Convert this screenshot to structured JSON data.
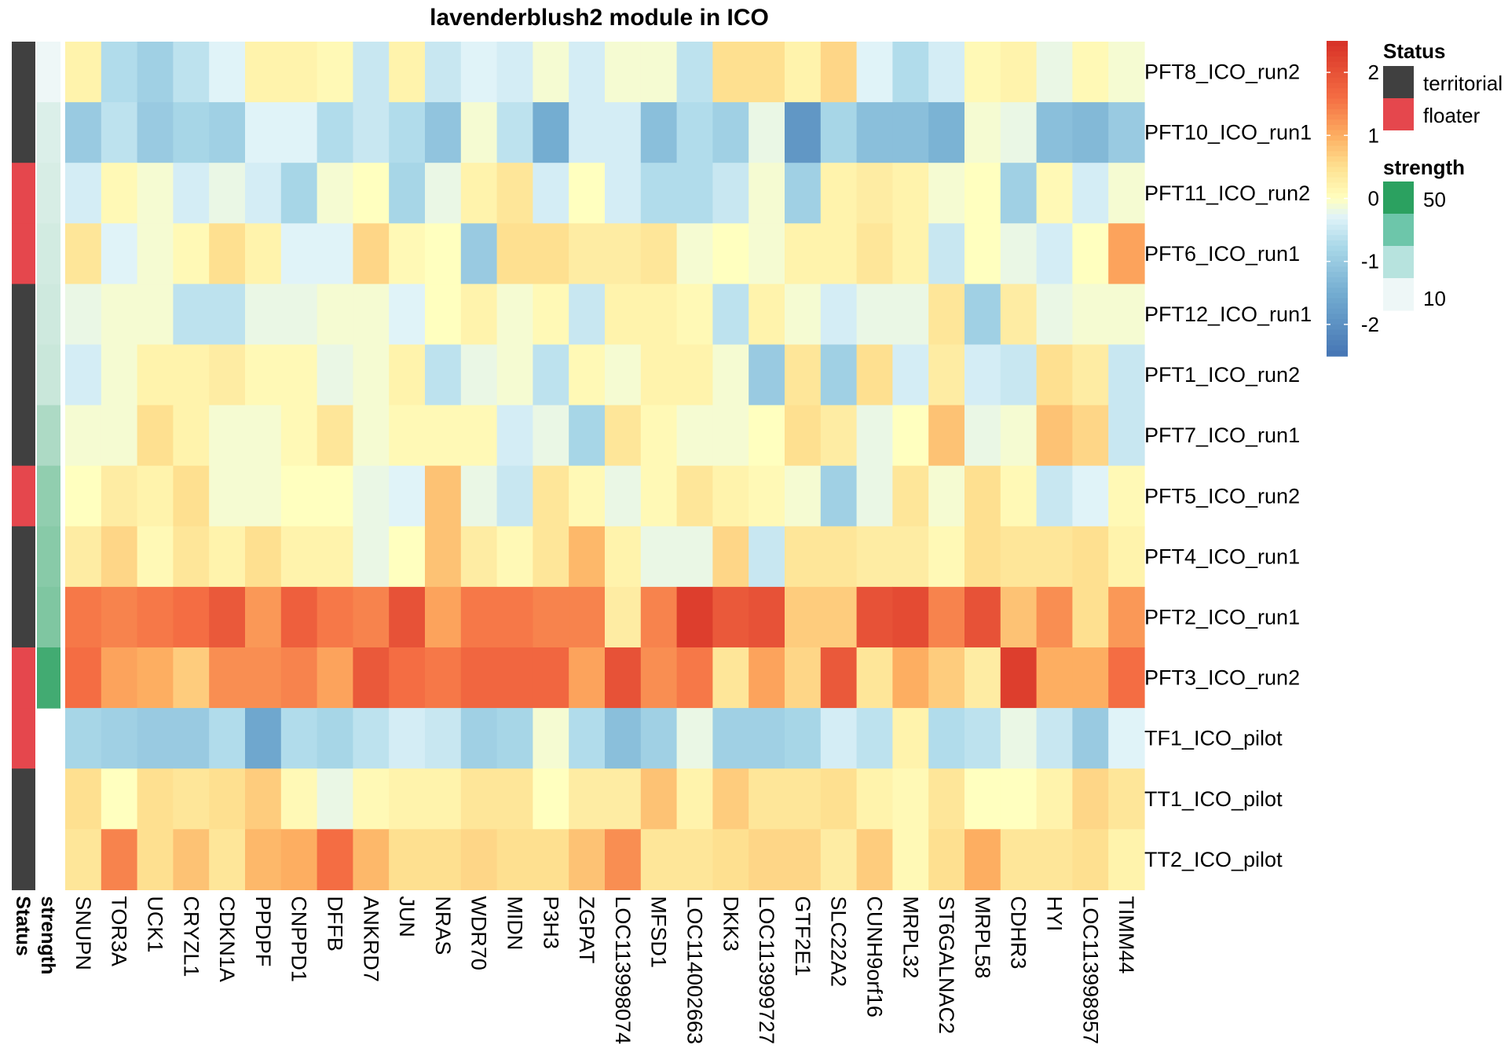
{
  "chart_data": {
    "type": "heatmap",
    "title": "lavenderblush2 module in ICO",
    "rows": [
      "PFT8_ICO_run2",
      "PFT10_ICO_run1",
      "PFT11_ICO_run2",
      "PFT6_ICO_run1",
      "PFT12_ICO_run1",
      "PFT1_ICO_run2",
      "PFT7_ICO_run1",
      "PFT5_ICO_run2",
      "PFT4_ICO_run1",
      "PFT2_ICO_run1",
      "PFT3_ICO_run2",
      "TF1_ICO_pilot",
      "TT1_ICO_pilot",
      "TT2_ICO_pilot"
    ],
    "columns": [
      "SNUPN",
      "TOR3A",
      "UCK1",
      "CRYZL1",
      "CDKN1A",
      "PPDPF",
      "CNPPD1",
      "DFFB",
      "ANKRD7",
      "JUN",
      "NRAS",
      "WDR70",
      "MIDN",
      "P3H3",
      "ZGPAT",
      "LOC113998074",
      "MFSD1",
      "LOC114002663",
      "DKK3",
      "LOC113999727",
      "GTF2E1",
      "SLC22A2",
      "CUNH9orf16",
      "MRPL32",
      "ST6GALNAC2",
      "MRPL58",
      "CDHR3",
      "HYI",
      "LOC113998957",
      "TIMM44"
    ],
    "values": [
      [
        0.2,
        -0.7,
        -0.9,
        -0.6,
        -0.3,
        0.2,
        0.2,
        0.1,
        -0.5,
        0.2,
        -0.5,
        -0.3,
        -0.4,
        -0.1,
        -0.4,
        -0.1,
        -0.1,
        -0.6,
        0.5,
        0.5,
        0.2,
        0.6,
        -0.3,
        -0.7,
        -0.4,
        0.1,
        0.2,
        -0.2,
        0.1,
        -0.1
      ],
      [
        -1.0,
        -0.6,
        -1.0,
        -0.8,
        -0.9,
        -0.3,
        -0.3,
        -0.7,
        -0.5,
        -0.7,
        -1.1,
        -0.1,
        -0.6,
        -1.5,
        -0.4,
        -0.4,
        -1.2,
        -0.7,
        -0.9,
        -0.2,
        -1.9,
        -0.8,
        -1.2,
        -1.2,
        -1.4,
        -0.1,
        -0.2,
        -1.2,
        -1.3,
        -1.0
      ],
      [
        -0.4,
        0.1,
        -0.1,
        -0.4,
        -0.2,
        -0.4,
        -0.8,
        -0.1,
        0.0,
        -0.8,
        -0.2,
        0.2,
        0.4,
        -0.4,
        0.0,
        -0.4,
        -0.7,
        -0.7,
        -0.5,
        -0.1,
        -0.9,
        0.2,
        0.3,
        0.2,
        -0.1,
        0.0,
        -0.9,
        0.1,
        -0.4,
        -0.1
      ],
      [
        0.4,
        -0.3,
        -0.1,
        0.1,
        0.5,
        0.2,
        -0.3,
        -0.3,
        0.6,
        0.1,
        0.0,
        -1.0,
        0.5,
        0.5,
        0.3,
        0.3,
        0.4,
        -0.1,
        0.0,
        -0.1,
        0.2,
        0.2,
        0.4,
        0.2,
        -0.5,
        0.0,
        -0.2,
        -0.4,
        0.0,
        1.1
      ],
      [
        -0.2,
        -0.1,
        -0.1,
        -0.6,
        -0.6,
        -0.2,
        -0.2,
        -0.1,
        -0.1,
        -0.3,
        0.0,
        0.2,
        -0.1,
        0.1,
        -0.5,
        0.2,
        0.2,
        0.1,
        -0.6,
        0.2,
        -0.1,
        -0.4,
        -0.2,
        -0.2,
        0.4,
        -0.9,
        0.3,
        -0.2,
        -0.1,
        -0.1
      ],
      [
        -0.4,
        -0.1,
        0.2,
        0.2,
        0.3,
        0.1,
        0.1,
        -0.2,
        -0.1,
        0.2,
        -0.6,
        -0.2,
        -0.1,
        -0.6,
        0.1,
        -0.1,
        0.2,
        0.2,
        -0.1,
        -1.0,
        0.4,
        -0.9,
        0.5,
        -0.4,
        0.3,
        -0.4,
        -0.5,
        0.5,
        0.3,
        -0.5
      ],
      [
        -0.1,
        -0.1,
        0.5,
        0.2,
        -0.1,
        -0.1,
        0.1,
        0.4,
        -0.1,
        0.1,
        0.1,
        0.1,
        -0.4,
        -0.2,
        -0.8,
        0.4,
        0.1,
        -0.1,
        -0.1,
        0.0,
        0.5,
        0.3,
        -0.2,
        0.0,
        0.8,
        -0.2,
        -0.1,
        0.8,
        0.6,
        -0.5
      ],
      [
        0.0,
        0.3,
        0.2,
        0.5,
        -0.1,
        -0.1,
        0.0,
        0.0,
        -0.2,
        -0.3,
        0.8,
        -0.2,
        -0.5,
        0.4,
        0.1,
        -0.2,
        0.1,
        0.4,
        0.2,
        0.1,
        -0.1,
        -0.9,
        -0.2,
        0.4,
        -0.1,
        0.5,
        0.1,
        -0.5,
        -0.3,
        0.1
      ],
      [
        0.3,
        0.6,
        0.1,
        0.4,
        0.2,
        0.5,
        0.2,
        0.2,
        -0.2,
        0.0,
        0.8,
        0.3,
        0.1,
        0.4,
        0.9,
        0.2,
        -0.2,
        -0.2,
        0.6,
        -0.5,
        0.4,
        0.4,
        0.3,
        0.3,
        0.1,
        0.5,
        0.4,
        0.4,
        0.5,
        0.2
      ],
      [
        1.5,
        1.4,
        1.5,
        1.6,
        1.9,
        1.2,
        1.8,
        1.5,
        1.4,
        2.0,
        1.1,
        1.5,
        1.5,
        1.4,
        1.4,
        0.3,
        1.4,
        2.3,
        1.9,
        2.0,
        0.7,
        0.7,
        2.0,
        2.1,
        1.4,
        2.0,
        0.8,
        1.3,
        0.5,
        1.2
      ],
      [
        1.6,
        1.1,
        1.0,
        0.7,
        1.3,
        1.3,
        1.4,
        1.1,
        1.9,
        1.6,
        1.5,
        1.7,
        1.7,
        1.7,
        1.1,
        2.0,
        1.3,
        1.5,
        0.4,
        1.1,
        0.6,
        1.9,
        0.4,
        1.0,
        0.7,
        0.3,
        2.3,
        1.0,
        1.0,
        1.6
      ],
      [
        -0.8,
        -0.9,
        -1.0,
        -1.0,
        -0.7,
        -1.6,
        -0.7,
        -0.8,
        -0.6,
        -0.4,
        -0.5,
        -0.9,
        -0.8,
        -0.1,
        -0.7,
        -1.2,
        -0.9,
        -0.2,
        -0.9,
        -0.9,
        -0.8,
        -0.4,
        -0.6,
        0.2,
        -0.7,
        -0.6,
        -0.2,
        -0.5,
        -1.0,
        -0.3
      ],
      [
        0.5,
        0.0,
        0.5,
        0.4,
        0.5,
        0.7,
        0.1,
        -0.2,
        0.1,
        0.2,
        0.2,
        0.4,
        0.4,
        0.0,
        0.3,
        0.3,
        0.8,
        0.2,
        0.7,
        0.4,
        0.4,
        0.5,
        0.2,
        0.1,
        0.4,
        0.0,
        0.0,
        0.2,
        0.6,
        0.4
      ],
      [
        0.4,
        1.4,
        0.5,
        0.8,
        0.4,
        0.9,
        1.0,
        1.6,
        0.9,
        0.5,
        0.5,
        0.6,
        0.5,
        0.5,
        0.8,
        1.3,
        0.4,
        0.4,
        0.5,
        0.6,
        0.6,
        0.3,
        0.7,
        0.1,
        0.5,
        1.0,
        0.4,
        0.4,
        0.5,
        0.2
      ]
    ],
    "status": [
      "territorial",
      "territorial",
      "floater",
      "floater",
      "territorial",
      "territorial",
      "territorial",
      "floater",
      "territorial",
      "territorial",
      "floater",
      "floater",
      "territorial",
      "territorial"
    ],
    "strength": [
      8,
      12,
      13,
      14,
      15,
      16,
      22,
      28,
      30,
      32,
      45,
      null,
      null,
      null
    ],
    "colorbar_ticks": [
      2,
      1,
      0,
      -1,
      -2
    ],
    "colorbar_range": [
      -2.5,
      2.5
    ],
    "annotation_labels": [
      "Status",
      "strength"
    ],
    "legend_status_title": "Status",
    "legend_status_items": [
      {
        "label": "territorial",
        "color": "#404040"
      },
      {
        "label": "floater",
        "color": "#E5474D"
      }
    ],
    "legend_strength_title": "strength",
    "legend_strength_ticks": [
      "50",
      "10"
    ],
    "strength_colors": [
      "#2BA160",
      "#6DC6AA",
      "#B7E3DE",
      "#EEF7F7"
    ]
  }
}
